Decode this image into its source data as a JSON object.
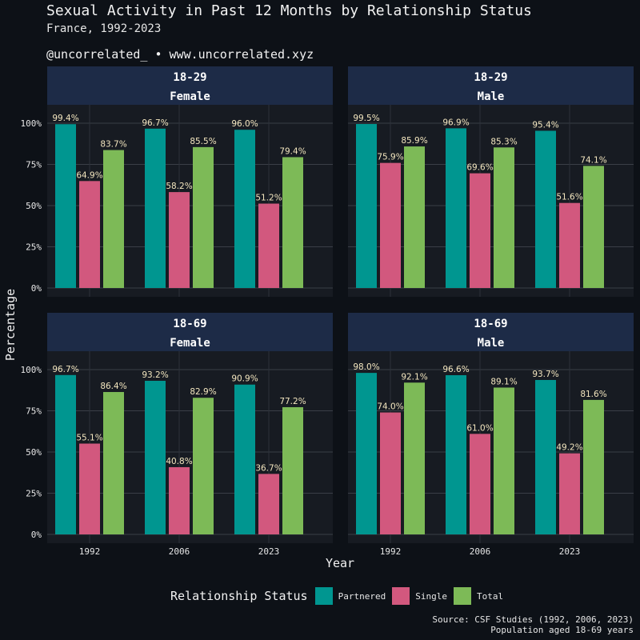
{
  "header": {
    "title": "Sexual Activity in Past 12 Months by Relationship Status",
    "subtitle": "France, 1992-2023",
    "credit": "@uncorrelated_ • www.uncorrelated.xyz"
  },
  "caption": {
    "line1": "Source: CSF Studies (1992, 2006, 2023)",
    "line2": "Population aged 18-69 years"
  },
  "legend": {
    "title": "Relationship Status",
    "items": [
      {
        "label": "Partnered",
        "color": "#009690"
      },
      {
        "label": "Single",
        "color": "#d2587e"
      },
      {
        "label": "Total",
        "color": "#7dba57"
      }
    ]
  },
  "chart_data": {
    "type": "bar",
    "xlabel": "Year",
    "ylabel": "Percentage",
    "ylim": [
      0,
      100
    ],
    "yticks": [
      0,
      25,
      50,
      75,
      100
    ],
    "ytick_labels": [
      "0%",
      "25%",
      "50%",
      "75%",
      "100%"
    ],
    "categories": [
      "1992",
      "2006",
      "2023"
    ],
    "series_names": [
      "Partnered",
      "Single",
      "Total"
    ],
    "panels": [
      {
        "age": "18-29",
        "sex": "Female",
        "series": [
          {
            "name": "Partnered",
            "values": [
              99.4,
              96.7,
              96.0
            ],
            "labels": [
              "99.4%",
              "96.7%",
              "96.0%"
            ]
          },
          {
            "name": "Single",
            "values": [
              64.9,
              58.2,
              51.2
            ],
            "labels": [
              "64.9%",
              "58.2%",
              "51.2%"
            ]
          },
          {
            "name": "Total",
            "values": [
              83.7,
              85.5,
              79.4
            ],
            "labels": [
              "83.7%",
              "85.5%",
              "79.4%"
            ]
          }
        ]
      },
      {
        "age": "18-29",
        "sex": "Male",
        "series": [
          {
            "name": "Partnered",
            "values": [
              99.5,
              96.9,
              95.4
            ],
            "labels": [
              "99.5%",
              "96.9%",
              "95.4%"
            ]
          },
          {
            "name": "Single",
            "values": [
              75.9,
              69.6,
              51.6
            ],
            "labels": [
              "75.9%",
              "69.6%",
              "51.6%"
            ]
          },
          {
            "name": "Total",
            "values": [
              85.9,
              85.3,
              74.1
            ],
            "labels": [
              "85.9%",
              "85.3%",
              "74.1%"
            ]
          }
        ]
      },
      {
        "age": "18-69",
        "sex": "Female",
        "series": [
          {
            "name": "Partnered",
            "values": [
              96.7,
              93.2,
              90.9
            ],
            "labels": [
              "96.7%",
              "93.2%",
              "90.9%"
            ]
          },
          {
            "name": "Single",
            "values": [
              55.1,
              40.8,
              36.7
            ],
            "labels": [
              "55.1%",
              "40.8%",
              "36.7%"
            ]
          },
          {
            "name": "Total",
            "values": [
              86.4,
              82.9,
              77.2
            ],
            "labels": [
              "86.4%",
              "82.9%",
              "77.2%"
            ]
          }
        ]
      },
      {
        "age": "18-69",
        "sex": "Male",
        "series": [
          {
            "name": "Partnered",
            "values": [
              98.0,
              96.6,
              93.7
            ],
            "labels": [
              "98.0%",
              "96.6%",
              "93.7%"
            ]
          },
          {
            "name": "Single",
            "values": [
              74.0,
              61.0,
              49.2
            ],
            "labels": [
              "74.0%",
              "61.0%",
              "49.2%"
            ]
          },
          {
            "name": "Total",
            "values": [
              92.1,
              89.1,
              81.6
            ],
            "labels": [
              "92.1%",
              "89.1%",
              "81.6%"
            ]
          }
        ]
      }
    ]
  }
}
